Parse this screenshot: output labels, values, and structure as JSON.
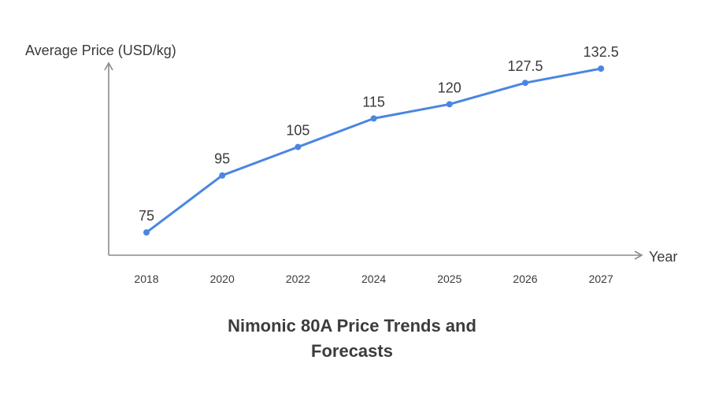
{
  "chart_data": {
    "type": "line",
    "categories": [
      "2018",
      "2020",
      "2022",
      "2024",
      "2025",
      "2026",
      "2027"
    ],
    "values": [
      75,
      95,
      105,
      115,
      120,
      127.5,
      132.5
    ],
    "data_labels": [
      "75",
      "95",
      "105",
      "115",
      "120",
      "127.5",
      "132.5"
    ],
    "title_lines": [
      "Nimonic 80A Price Trends and",
      "Forecasts"
    ],
    "xlabel": "Year",
    "ylabel": "Average Price (USD/kg)",
    "ylim": [
      67,
      140
    ],
    "grid": false,
    "legend": "none",
    "colors": {
      "series": "#4a86e0",
      "axis": "#8a8a8a",
      "text": "#3a3a3a"
    }
  }
}
